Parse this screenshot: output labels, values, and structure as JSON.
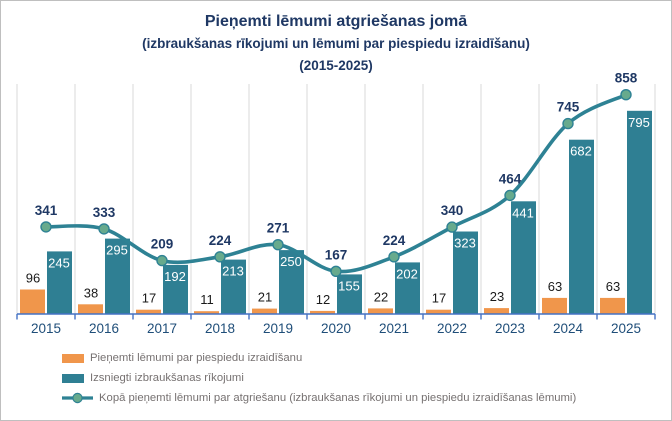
{
  "title": {
    "line1": "Pieņemti lēmumi atgriešanas jomā",
    "line2": "(izbraukšanas rīkojumi un lēmumi par piespiedu izraidīšanu)",
    "line3": "(2015-2025)"
  },
  "chart_data": {
    "type": "combo-bar-line",
    "categories": [
      "2015",
      "2016",
      "2017",
      "2018",
      "2019",
      "2020",
      "2021",
      "2022",
      "2023",
      "2024",
      "2025"
    ],
    "series": [
      {
        "name": "Pieņemti lēmumi par piespiedu izraidīšanu",
        "type": "bar",
        "color": "#f0964b",
        "label_color": "#1a1a1a",
        "values": [
          96,
          38,
          17,
          11,
          21,
          12,
          22,
          17,
          23,
          63,
          63
        ]
      },
      {
        "name": "Izsniegti izbraukšanas rīkojumi",
        "type": "bar",
        "color": "#2f7f93",
        "label_color": "#ffffff",
        "values": [
          245,
          295,
          192,
          213,
          250,
          155,
          202,
          323,
          441,
          682,
          795
        ]
      },
      {
        "name": "Kopā pieņemti lēmumi par atgriešanu (izbraukšanas rīkojumi un piespiedu izraidīšanas lēmumi)",
        "type": "line",
        "color": "#2e8294",
        "marker_color": "#67aa8d",
        "label_color": "#1f3864",
        "values": [
          341,
          333,
          209,
          224,
          271,
          167,
          224,
          340,
          464,
          745,
          858
        ]
      }
    ],
    "ylim": [
      0,
      900
    ],
    "y_axis_visible": false,
    "grid": "vertical-category-lines",
    "legend_position": "bottom-left",
    "colors": {
      "gridline": "#d9d9d9",
      "axis_line": "#4472c4",
      "x_label": "#1f4e79",
      "title": "#1f3864",
      "legend_text": "#767171",
      "frame_border": "#bfbfbf"
    }
  }
}
